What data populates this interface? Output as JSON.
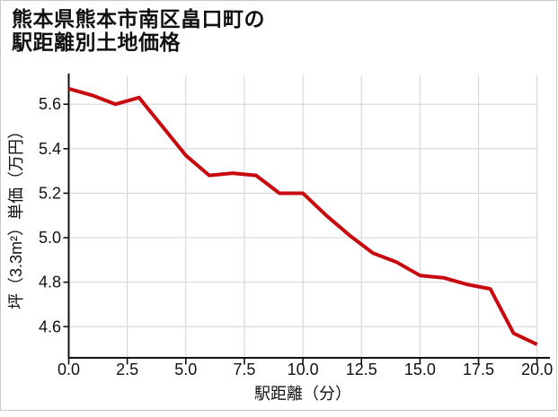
{
  "card": {
    "background": "#ffffff",
    "border_color": "#c9c9c9"
  },
  "title": {
    "line1": "熊本県熊本市南区畠口町の",
    "line2": "駅距離別土地価格",
    "color": "#111111"
  },
  "chart_data": {
    "type": "line",
    "title": "熊本県熊本市南区畠口町の駅距離別土地価格",
    "xlabel": "駅距離（分）",
    "ylabel": "坪（3.3m²）単価（万円）",
    "x": [
      0,
      1,
      2,
      3,
      4,
      5,
      6,
      7,
      8,
      9,
      10,
      11,
      12,
      13,
      14,
      15,
      16,
      17,
      18,
      19,
      20
    ],
    "values": [
      5.67,
      5.64,
      5.6,
      5.63,
      5.5,
      5.37,
      5.28,
      5.29,
      5.28,
      5.2,
      5.2,
      5.1,
      5.01,
      4.93,
      4.89,
      4.83,
      4.82,
      4.79,
      4.77,
      4.57,
      4.52
    ],
    "xticks": [
      0,
      2.5,
      5,
      7.5,
      10,
      12.5,
      15,
      17.5,
      20
    ],
    "xtick_labels": [
      "0.0",
      "2.5",
      "5.0",
      "7.5",
      "10.0",
      "12.5",
      "15.0",
      "17.5",
      "20.0"
    ],
    "yticks": [
      4.6,
      4.8,
      5.0,
      5.2,
      5.4,
      5.6
    ],
    "ytick_labels": [
      "4.6",
      "4.8",
      "5.0",
      "5.2",
      "5.4",
      "5.6"
    ],
    "xlim": [
      0,
      20
    ],
    "ylim": [
      4.46,
      5.73
    ],
    "grid": true,
    "legend": "none",
    "line_color": "#c8090d",
    "grid_color": "#d9d9d9",
    "axis_color": "#111111",
    "tick_label_color": "#111111"
  }
}
